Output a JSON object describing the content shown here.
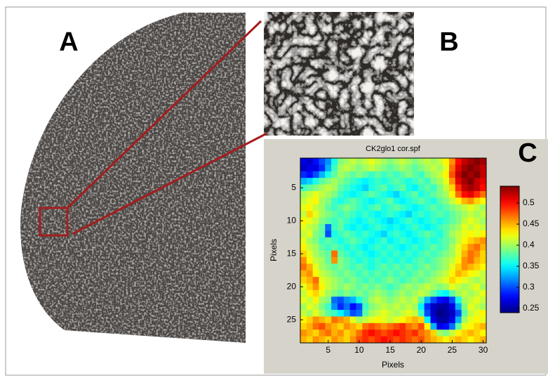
{
  "panel_labels": [
    "A",
    "B",
    "C"
  ],
  "chart_data": {
    "type": "heatmap",
    "title": "CK2glo1 cor.spf",
    "x_label": "Pixels",
    "y_label": "Pixels",
    "colormap": "jet",
    "clim": [
      0.24,
      0.54
    ],
    "cticks": [
      0.25,
      0.3,
      0.35,
      0.4,
      0.45,
      0.5
    ],
    "xlim": [
      0.5,
      30.5
    ],
    "ylim": [
      0.5,
      28.5
    ],
    "y_reversed": true,
    "xticks": [
      5,
      10,
      15,
      20,
      25,
      30
    ],
    "yticks": [
      5,
      10,
      15,
      20,
      25
    ],
    "z": [
      [
        0.27,
        0.26,
        0.28,
        0.3,
        0.32,
        0.36,
        0.39,
        0.4,
        0.41,
        0.4,
        0.41,
        0.42,
        0.41,
        0.4,
        0.39,
        0.4,
        0.41,
        0.4,
        0.39,
        0.4,
        0.41,
        0.4,
        0.41,
        0.43,
        0.46,
        0.5,
        0.52,
        0.53,
        0.54,
        0.53
      ],
      [
        0.26,
        0.27,
        0.27,
        0.29,
        0.33,
        0.37,
        0.4,
        0.41,
        0.4,
        0.39,
        0.4,
        0.41,
        0.4,
        0.39,
        0.38,
        0.39,
        0.4,
        0.39,
        0.38,
        0.39,
        0.4,
        0.41,
        0.4,
        0.42,
        0.47,
        0.51,
        0.53,
        0.54,
        0.53,
        0.52
      ],
      [
        0.29,
        0.28,
        0.3,
        0.33,
        0.36,
        0.38,
        0.4,
        0.39,
        0.38,
        0.39,
        0.38,
        0.37,
        0.38,
        0.37,
        0.38,
        0.37,
        0.38,
        0.39,
        0.38,
        0.37,
        0.39,
        0.4,
        0.41,
        0.43,
        0.48,
        0.52,
        0.54,
        0.53,
        0.54,
        0.52
      ],
      [
        0.33,
        0.34,
        0.36,
        0.38,
        0.39,
        0.4,
        0.39,
        0.38,
        0.37,
        0.36,
        0.35,
        0.36,
        0.37,
        0.36,
        0.37,
        0.38,
        0.37,
        0.36,
        0.37,
        0.38,
        0.37,
        0.39,
        0.4,
        0.42,
        0.46,
        0.51,
        0.53,
        0.54,
        0.52,
        0.51
      ],
      [
        0.37,
        0.38,
        0.39,
        0.4,
        0.41,
        0.4,
        0.38,
        0.37,
        0.36,
        0.35,
        0.34,
        0.36,
        0.37,
        0.38,
        0.36,
        0.37,
        0.38,
        0.36,
        0.35,
        0.37,
        0.38,
        0.37,
        0.39,
        0.41,
        0.44,
        0.49,
        0.52,
        0.53,
        0.52,
        0.5
      ],
      [
        0.4,
        0.41,
        0.42,
        0.41,
        0.4,
        0.39,
        0.37,
        0.36,
        0.35,
        0.36,
        0.37,
        0.38,
        0.37,
        0.36,
        0.35,
        0.34,
        0.36,
        0.37,
        0.38,
        0.36,
        0.37,
        0.38,
        0.39,
        0.4,
        0.43,
        0.47,
        0.5,
        0.51,
        0.49,
        0.47
      ],
      [
        0.41,
        0.42,
        0.43,
        0.4,
        0.39,
        0.37,
        0.36,
        0.37,
        0.38,
        0.37,
        0.36,
        0.35,
        0.36,
        0.37,
        0.38,
        0.36,
        0.35,
        0.36,
        0.37,
        0.38,
        0.37,
        0.36,
        0.38,
        0.39,
        0.41,
        0.43,
        0.45,
        0.46,
        0.44,
        0.43
      ],
      [
        0.42,
        0.43,
        0.41,
        0.4,
        0.38,
        0.37,
        0.38,
        0.39,
        0.38,
        0.37,
        0.36,
        0.37,
        0.38,
        0.36,
        0.37,
        0.38,
        0.37,
        0.36,
        0.35,
        0.36,
        0.37,
        0.38,
        0.37,
        0.38,
        0.39,
        0.4,
        0.41,
        0.42,
        0.41,
        0.4
      ],
      [
        0.41,
        0.44,
        0.42,
        0.4,
        0.39,
        0.38,
        0.37,
        0.38,
        0.37,
        0.36,
        0.37,
        0.36,
        0.35,
        0.36,
        0.37,
        0.36,
        0.35,
        0.34,
        0.36,
        0.37,
        0.36,
        0.37,
        0.38,
        0.37,
        0.38,
        0.39,
        0.4,
        0.41,
        0.4,
        0.41
      ],
      [
        0.43,
        0.42,
        0.41,
        0.39,
        0.38,
        0.37,
        0.38,
        0.37,
        0.36,
        0.35,
        0.36,
        0.37,
        0.36,
        0.35,
        0.34,
        0.35,
        0.36,
        0.37,
        0.36,
        0.35,
        0.36,
        0.37,
        0.36,
        0.37,
        0.38,
        0.39,
        0.41,
        0.42,
        0.41,
        0.4
      ],
      [
        0.42,
        0.41,
        0.4,
        0.38,
        0.31,
        0.37,
        0.38,
        0.36,
        0.35,
        0.36,
        0.35,
        0.36,
        0.37,
        0.36,
        0.35,
        0.36,
        0.35,
        0.36,
        0.37,
        0.36,
        0.35,
        0.36,
        0.37,
        0.38,
        0.39,
        0.4,
        0.42,
        0.41,
        0.42,
        0.41
      ],
      [
        0.41,
        0.42,
        0.39,
        0.38,
        0.3,
        0.36,
        0.37,
        0.38,
        0.37,
        0.36,
        0.37,
        0.36,
        0.35,
        0.34,
        0.36,
        0.37,
        0.36,
        0.35,
        0.36,
        0.37,
        0.38,
        0.37,
        0.36,
        0.38,
        0.4,
        0.41,
        0.42,
        0.43,
        0.42,
        0.43
      ],
      [
        0.42,
        0.4,
        0.39,
        0.37,
        0.38,
        0.37,
        0.36,
        0.37,
        0.38,
        0.37,
        0.36,
        0.35,
        0.36,
        0.37,
        0.35,
        0.36,
        0.37,
        0.36,
        0.35,
        0.36,
        0.37,
        0.36,
        0.37,
        0.38,
        0.39,
        0.41,
        0.43,
        0.44,
        0.45,
        0.46
      ],
      [
        0.43,
        0.41,
        0.4,
        0.38,
        0.37,
        0.38,
        0.37,
        0.36,
        0.37,
        0.36,
        0.35,
        0.36,
        0.37,
        0.36,
        0.37,
        0.36,
        0.35,
        0.36,
        0.37,
        0.36,
        0.37,
        0.38,
        0.37,
        0.38,
        0.4,
        0.42,
        0.44,
        0.46,
        0.47,
        0.45
      ],
      [
        0.44,
        0.42,
        0.4,
        0.39,
        0.38,
        0.47,
        0.38,
        0.37,
        0.36,
        0.37,
        0.36,
        0.35,
        0.36,
        0.37,
        0.36,
        0.37,
        0.36,
        0.37,
        0.36,
        0.37,
        0.38,
        0.37,
        0.38,
        0.39,
        0.4,
        0.42,
        0.45,
        0.47,
        0.46,
        0.44
      ],
      [
        0.46,
        0.43,
        0.41,
        0.4,
        0.38,
        0.46,
        0.39,
        0.38,
        0.37,
        0.36,
        0.37,
        0.36,
        0.37,
        0.36,
        0.37,
        0.36,
        0.37,
        0.36,
        0.37,
        0.38,
        0.37,
        0.38,
        0.39,
        0.4,
        0.41,
        0.43,
        0.46,
        0.47,
        0.45,
        0.44
      ],
      [
        0.47,
        0.45,
        0.42,
        0.4,
        0.39,
        0.38,
        0.39,
        0.38,
        0.37,
        0.38,
        0.37,
        0.36,
        0.37,
        0.38,
        0.37,
        0.38,
        0.37,
        0.38,
        0.37,
        0.38,
        0.39,
        0.38,
        0.39,
        0.4,
        0.42,
        0.44,
        0.46,
        0.45,
        0.44,
        0.43
      ],
      [
        0.45,
        0.46,
        0.43,
        0.41,
        0.4,
        0.39,
        0.38,
        0.39,
        0.38,
        0.37,
        0.38,
        0.37,
        0.38,
        0.37,
        0.38,
        0.37,
        0.38,
        0.37,
        0.38,
        0.39,
        0.38,
        0.39,
        0.4,
        0.41,
        0.43,
        0.45,
        0.44,
        0.43,
        0.42,
        0.41
      ],
      [
        0.44,
        0.45,
        0.47,
        0.42,
        0.41,
        0.4,
        0.39,
        0.38,
        0.39,
        0.38,
        0.37,
        0.38,
        0.37,
        0.38,
        0.39,
        0.38,
        0.37,
        0.38,
        0.39,
        0.38,
        0.39,
        0.4,
        0.41,
        0.42,
        0.44,
        0.43,
        0.42,
        0.41,
        0.4,
        0.41
      ],
      [
        0.42,
        0.44,
        0.46,
        0.43,
        0.41,
        0.4,
        0.39,
        0.4,
        0.39,
        0.38,
        0.39,
        0.38,
        0.39,
        0.38,
        0.37,
        0.38,
        0.39,
        0.4,
        0.39,
        0.4,
        0.41,
        0.4,
        0.39,
        0.4,
        0.42,
        0.41,
        0.4,
        0.41,
        0.42,
        0.4
      ],
      [
        0.41,
        0.43,
        0.44,
        0.42,
        0.4,
        0.39,
        0.38,
        0.39,
        0.38,
        0.39,
        0.38,
        0.39,
        0.4,
        0.39,
        0.38,
        0.39,
        0.4,
        0.39,
        0.4,
        0.41,
        0.4,
        0.38,
        0.36,
        0.35,
        0.38,
        0.4,
        0.41,
        0.4,
        0.41,
        0.42
      ],
      [
        0.42,
        0.41,
        0.43,
        0.4,
        0.39,
        0.31,
        0.3,
        0.32,
        0.33,
        0.36,
        0.38,
        0.4,
        0.41,
        0.4,
        0.39,
        0.4,
        0.41,
        0.4,
        0.41,
        0.38,
        0.33,
        0.3,
        0.28,
        0.27,
        0.3,
        0.36,
        0.4,
        0.41,
        0.42,
        0.41
      ],
      [
        0.4,
        0.42,
        0.41,
        0.39,
        0.37,
        0.32,
        0.29,
        0.31,
        0.28,
        0.3,
        0.37,
        0.39,
        0.4,
        0.41,
        0.4,
        0.41,
        0.4,
        0.41,
        0.4,
        0.35,
        0.29,
        0.26,
        0.25,
        0.25,
        0.27,
        0.33,
        0.39,
        0.42,
        0.41,
        0.4
      ],
      [
        0.41,
        0.4,
        0.42,
        0.4,
        0.38,
        0.37,
        0.35,
        0.33,
        0.3,
        0.31,
        0.38,
        0.4,
        0.41,
        0.42,
        0.41,
        0.4,
        0.41,
        0.42,
        0.41,
        0.37,
        0.3,
        0.26,
        0.24,
        0.25,
        0.26,
        0.3,
        0.38,
        0.41,
        0.42,
        0.43
      ],
      [
        0.43,
        0.44,
        0.46,
        0.45,
        0.44,
        0.47,
        0.46,
        0.45,
        0.42,
        0.4,
        0.41,
        0.42,
        0.43,
        0.42,
        0.41,
        0.42,
        0.43,
        0.44,
        0.45,
        0.44,
        0.35,
        0.27,
        0.25,
        0.25,
        0.27,
        0.33,
        0.4,
        0.42,
        0.43,
        0.42
      ],
      [
        0.44,
        0.45,
        0.47,
        0.48,
        0.46,
        0.45,
        0.44,
        0.46,
        0.45,
        0.44,
        0.47,
        0.48,
        0.47,
        0.46,
        0.47,
        0.48,
        0.49,
        0.47,
        0.46,
        0.48,
        0.43,
        0.33,
        0.27,
        0.28,
        0.31,
        0.38,
        0.42,
        0.43,
        0.44,
        0.45
      ],
      [
        0.46,
        0.45,
        0.44,
        0.46,
        0.47,
        0.45,
        0.46,
        0.44,
        0.45,
        0.47,
        0.49,
        0.5,
        0.49,
        0.48,
        0.49,
        0.5,
        0.49,
        0.48,
        0.49,
        0.47,
        0.46,
        0.44,
        0.4,
        0.39,
        0.41,
        0.43,
        0.44,
        0.45,
        0.44,
        0.43
      ],
      [
        0.45,
        0.44,
        0.46,
        0.45,
        0.44,
        0.46,
        0.45,
        0.44,
        0.46,
        0.48,
        0.49,
        0.48,
        0.49,
        0.5,
        0.49,
        0.48,
        0.49,
        0.48,
        0.47,
        0.48,
        0.46,
        0.45,
        0.44,
        0.43,
        0.44,
        0.45,
        0.44,
        0.43,
        0.44,
        0.45
      ]
    ]
  }
}
